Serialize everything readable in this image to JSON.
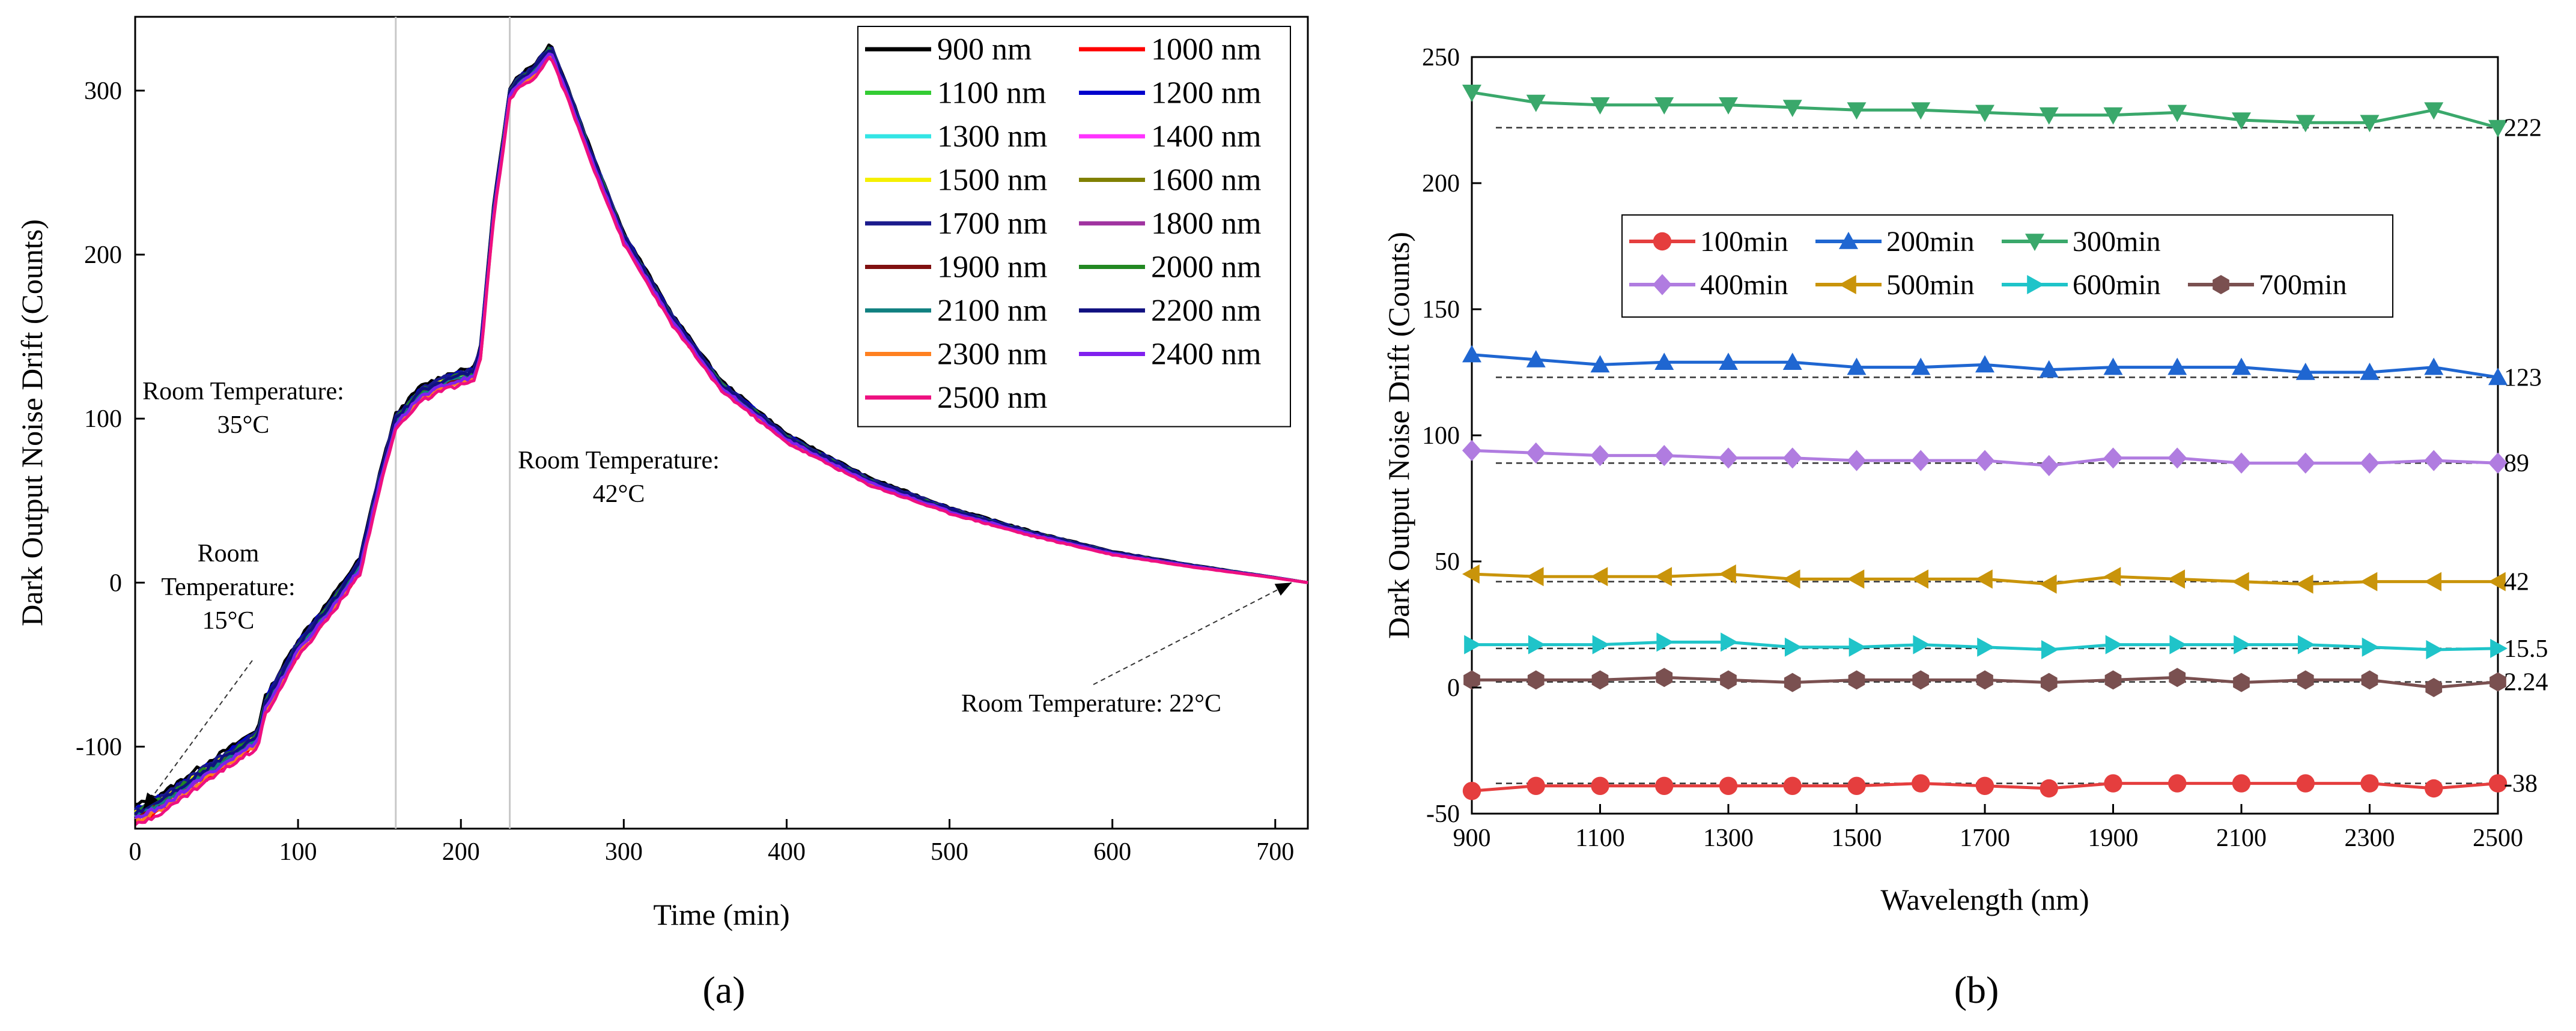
{
  "figure_captions": {
    "a": "(a)",
    "b": "(b)"
  },
  "chart_data": [
    {
      "type": "line",
      "panel": "a",
      "caption": "(a)",
      "xlabel": "Time (min)",
      "ylabel": "Dark Output Noise Drift (Counts)",
      "xlim": [
        0,
        720
      ],
      "ylim": [
        -150,
        345
      ],
      "xticks": [
        0,
        100,
        200,
        300,
        400,
        500,
        600,
        700
      ],
      "yticks": [
        -100,
        0,
        100,
        200,
        300
      ],
      "vlines": [
        160,
        230
      ],
      "legend_position": "top-right",
      "base_curve": {
        "x": [
          0,
          5,
          20,
          40,
          60,
          75,
          80,
          100,
          120,
          138,
          150,
          160,
          175,
          190,
          200,
          208,
          212,
          220,
          230,
          235,
          245,
          255,
          265,
          280,
          300,
          330,
          360,
          400,
          450,
          500,
          550,
          600,
          650,
          700,
          720
        ],
        "y": [
          -142,
          -140,
          -132,
          -118,
          -105,
          -95,
          -75,
          -40,
          -15,
          10,
          62,
          98,
          115,
          122,
          125,
          127,
          140,
          225,
          298,
          305,
          312,
          325,
          300,
          260,
          210,
          160,
          120,
          88,
          62,
          44,
          30,
          18,
          10,
          3,
          0
        ]
      },
      "series": [
        {
          "name": "900 nm",
          "color": "#000000",
          "offset": 3
        },
        {
          "name": "1000 nm",
          "color": "#ff0000",
          "offset": -2
        },
        {
          "name": "1100 nm",
          "color": "#33cc33",
          "offset": 1
        },
        {
          "name": "1200 nm",
          "color": "#0000cc",
          "offset": 2
        },
        {
          "name": "1300 nm",
          "color": "#33e5e5",
          "offset": 0
        },
        {
          "name": "1400 nm",
          "color": "#ff33ff",
          "offset": -1
        },
        {
          "name": "1500 nm",
          "color": "#f5f000",
          "offset": 1
        },
        {
          "name": "1600 nm",
          "color": "#808000",
          "offset": 0
        },
        {
          "name": "1700 nm",
          "color": "#1a1a8c",
          "offset": 2
        },
        {
          "name": "1800 nm",
          "color": "#a033a0",
          "offset": -1
        },
        {
          "name": "1900 nm",
          "color": "#801010",
          "offset": 0
        },
        {
          "name": "2000 nm",
          "color": "#228822",
          "offset": 1
        },
        {
          "name": "2100 nm",
          "color": "#108080",
          "offset": 0
        },
        {
          "name": "2200 nm",
          "color": "#101080",
          "offset": 1
        },
        {
          "name": "2300 nm",
          "color": "#ff8020",
          "offset": -2
        },
        {
          "name": "2400 nm",
          "color": "#8020ee",
          "offset": -1
        },
        {
          "name": "2500 nm",
          "color": "#ee1080",
          "offset": -3
        }
      ],
      "annotations": [
        {
          "lines": [
            "Room Temperature:",
            "35°C"
          ],
          "align": "center"
        },
        {
          "lines": [
            "Room Temperature:",
            "42°C"
          ],
          "align": "center"
        },
        {
          "lines": [
            "Room",
            "Temperature:",
            "15°C"
          ],
          "align": "center",
          "arrow_to": [
            5,
            -138
          ]
        },
        {
          "lines": [
            "Room Temperature: 22°C"
          ],
          "align": "left",
          "arrow_to": [
            710,
            0
          ]
        }
      ]
    },
    {
      "type": "line",
      "panel": "b",
      "caption": "(b)",
      "xlabel": "Wavelength (nm)",
      "ylabel": "Dark Output Noise Drift (Counts)",
      "xlim": [
        900,
        2500
      ],
      "ylim": [
        -50,
        250
      ],
      "xticks": [
        900,
        1100,
        1300,
        1500,
        1700,
        1900,
        2100,
        2300,
        2500
      ],
      "yticks": [
        -50,
        0,
        50,
        100,
        150,
        200,
        250
      ],
      "x": [
        900,
        1000,
        1100,
        1200,
        1300,
        1400,
        1500,
        1600,
        1700,
        1800,
        1900,
        2000,
        2100,
        2200,
        2300,
        2400,
        2500
      ],
      "legend_position": "upper-middle",
      "series": [
        {
          "name": "100min",
          "color": "#e53e3e",
          "marker": "circle",
          "values": [
            -41,
            -39,
            -39,
            -39,
            -39,
            -39,
            -39,
            -38,
            -39,
            -40,
            -38,
            -38,
            -38,
            -38,
            -38,
            -40,
            -38
          ],
          "reference": -38,
          "reference_label": "-38"
        },
        {
          "name": "200min",
          "color": "#1f66d1",
          "marker": "triangle-up",
          "values": [
            132,
            130,
            128,
            129,
            129,
            129,
            127,
            127,
            128,
            126,
            127,
            127,
            127,
            125,
            125,
            127,
            123
          ],
          "reference": 123,
          "reference_label": "123"
        },
        {
          "name": "300min",
          "color": "#3aa86b",
          "marker": "triangle-down",
          "values": [
            236,
            232,
            231,
            231,
            231,
            230,
            229,
            229,
            228,
            227,
            227,
            228,
            225,
            224,
            224,
            229,
            222
          ],
          "reference": 222,
          "reference_label": "222"
        },
        {
          "name": "400min",
          "color": "#b07ce0",
          "marker": "diamond",
          "values": [
            94,
            93,
            92,
            92,
            91,
            91,
            90,
            90,
            90,
            88,
            91,
            91,
            89,
            89,
            89,
            90,
            89
          ],
          "reference": 89,
          "reference_label": "89"
        },
        {
          "name": "500min",
          "color": "#c9940a",
          "marker": "triangle-left",
          "values": [
            45,
            44,
            44,
            44,
            45,
            43,
            43,
            43,
            43,
            41,
            44,
            43,
            42,
            41,
            42,
            42,
            42
          ],
          "reference": 42,
          "reference_label": "42"
        },
        {
          "name": "600min",
          "color": "#1fc4c9",
          "marker": "triangle-right",
          "values": [
            17,
            17,
            17,
            18,
            18,
            16,
            16,
            17,
            16,
            15,
            17,
            17,
            17,
            17,
            16,
            15,
            15.5
          ],
          "reference": 15.5,
          "reference_label": "15.5"
        },
        {
          "name": "700min",
          "color": "#7a5050",
          "marker": "hexagon",
          "values": [
            3,
            3,
            3,
            4,
            3,
            2,
            3,
            3,
            3,
            2,
            3,
            4,
            2,
            3,
            3,
            0,
            2.24
          ],
          "reference": 2.24,
          "reference_label": "2.24"
        }
      ]
    }
  ]
}
